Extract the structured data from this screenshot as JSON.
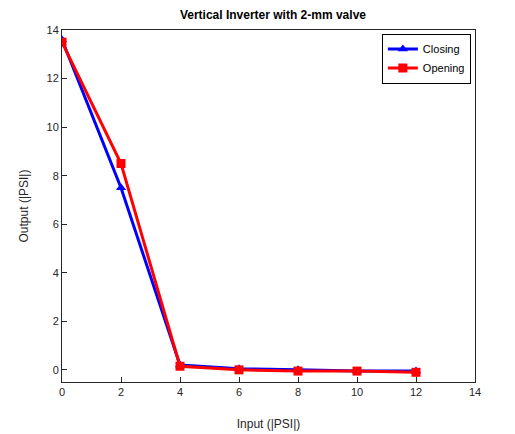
{
  "chart_data": {
    "type": "line",
    "title": "Vertical Inverter with 2-mm valve",
    "x_label": "Input (|PSI|)",
    "y_label": "Output (|PSI|)",
    "x": [
      0,
      2,
      4,
      6,
      8,
      10,
      12
    ],
    "series": [
      {
        "name": "Closing",
        "color": "#0000ff",
        "marker": "triangle",
        "values": [
          13.6,
          7.5,
          0.2,
          0.05,
          0,
          -0.05,
          -0.05
        ]
      },
      {
        "name": "Opening",
        "color": "#ff0000",
        "marker": "square",
        "values": [
          13.5,
          8.5,
          0.15,
          0,
          -0.05,
          -0.05,
          -0.1
        ]
      }
    ],
    "xlim": [
      0,
      14
    ],
    "xticks": [
      0,
      2,
      4,
      6,
      8,
      10,
      12,
      14
    ],
    "ylim": [
      -0.5,
      14
    ],
    "yticks": [
      0,
      2,
      4,
      6,
      8,
      10,
      12,
      14
    ],
    "grid": false,
    "legend": "top right"
  }
}
